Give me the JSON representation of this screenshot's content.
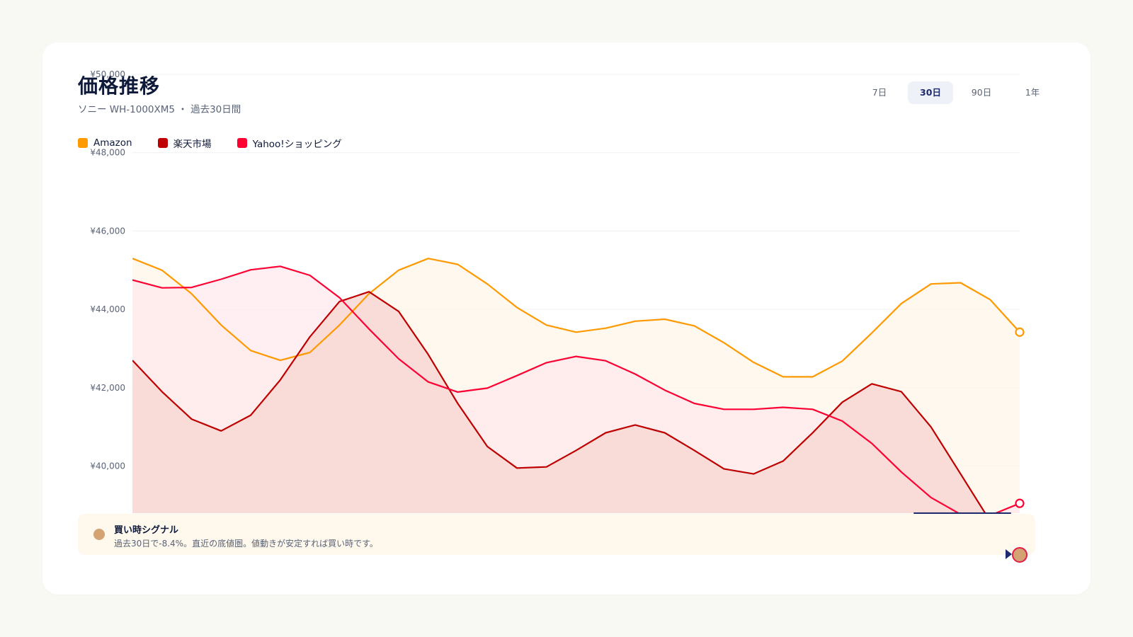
{
  "header": {
    "title": "価格推移",
    "subtitle": "ソニー WH-1000XM5 ・ 過去30日間"
  },
  "tabs": [
    {
      "label": "7日",
      "active": false
    },
    {
      "label": "30日",
      "active": true
    },
    {
      "label": "90日",
      "active": false
    },
    {
      "label": "1年",
      "active": false
    }
  ],
  "signal": {
    "title": "買い時シグナル",
    "text": "過去30日で-8.4%。直近の底値圏。値動きが安定すれば買い時です。",
    "color": "#d4a373"
  },
  "chart_data": {
    "type": "area",
    "title": "",
    "xlabel": "",
    "ylabel": "",
    "ylim": [
      38800,
      50000
    ],
    "y_ticks": [
      40000,
      42000,
      44000,
      46000,
      48000,
      50000
    ],
    "y_tick_labels": [
      "¥40,000",
      "¥42,000",
      "¥44,000",
      "¥46,000",
      "¥48,000",
      "¥50,000"
    ],
    "grid": true,
    "legend_position": "top-left",
    "x": [
      1,
      2,
      3,
      4,
      5,
      6,
      7,
      8,
      9,
      10,
      11,
      12,
      13,
      14,
      15,
      16,
      17,
      18,
      19,
      20,
      21,
      22,
      23,
      24,
      25,
      26,
      27,
      28,
      29,
      30,
      31
    ],
    "series": [
      {
        "name": "Amazon",
        "color": "#ff9900",
        "fill": "#fff6e8",
        "values": [
          45300,
          45000,
          44400,
          43600,
          42950,
          42700,
          42900,
          43600,
          44400,
          45000,
          45300,
          45150,
          44650,
          44050,
          43600,
          43420,
          43520,
          43700,
          43750,
          43580,
          43150,
          42650,
          42280,
          42280,
          42680,
          43400,
          44150,
          44650,
          44680,
          44250,
          43420
        ]
      },
      {
        "name": "楽天市場",
        "color": "#bf0000",
        "fill": "#f8d7d4",
        "values": [
          42700,
          41900,
          41200,
          40900,
          41300,
          42200,
          43300,
          44200,
          44450,
          43950,
          42850,
          41600,
          40500,
          39950,
          39980,
          40400,
          40850,
          41050,
          40850,
          40400,
          39930,
          39800,
          40130,
          40850,
          41630,
          42100,
          41900,
          41000,
          39800,
          38600,
          38300
        ]
      },
      {
        "name": "Yahoo!ショッピング",
        "color": "#ff0033",
        "fill": "#ffe9ee",
        "values": [
          44750,
          44550,
          44560,
          44770,
          45010,
          45100,
          44870,
          44300,
          43500,
          42740,
          42150,
          41890,
          41990,
          42310,
          42640,
          42800,
          42690,
          42350,
          41940,
          41600,
          41450,
          41450,
          41500,
          41450,
          41150,
          40580,
          39850,
          39200,
          38770,
          38740,
          39050
        ]
      }
    ]
  }
}
